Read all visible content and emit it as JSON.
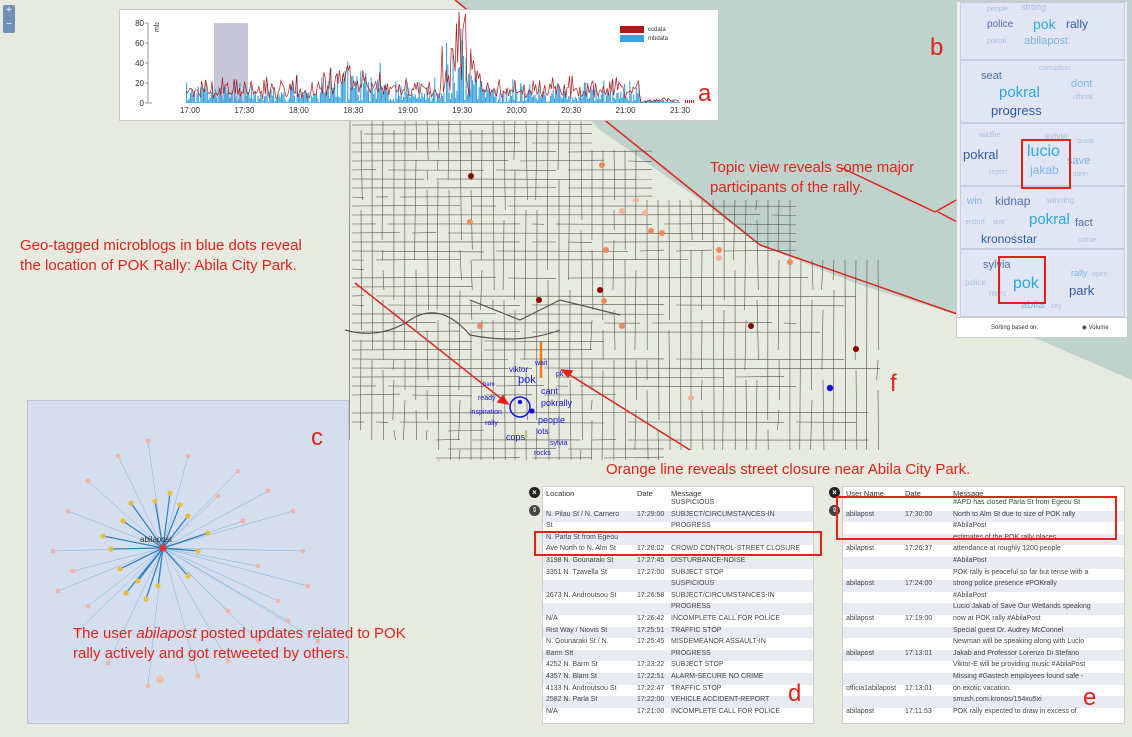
{
  "panel_labels": {
    "a": "a",
    "b": "b",
    "c": "c",
    "d": "d",
    "e": "e",
    "f": "f"
  },
  "zoom": {
    "in": "+",
    "out": "−"
  },
  "timeline": {
    "ylabel_left": "mb",
    "ylabel_right": "cc",
    "left_ticks": [
      "0",
      "20",
      "40",
      "60",
      "80"
    ],
    "right_ticks": [
      "0",
      "2",
      "4",
      "6",
      "8"
    ],
    "x_ticks": [
      "17:00",
      "17:30",
      "18:00",
      "18:30",
      "19:00",
      "19:30",
      "20:00",
      "20:30",
      "21:00",
      "21:30"
    ],
    "legend": [
      {
        "label": "ccdata",
        "color": "#b01818"
      },
      {
        "label": "mbdata",
        "color": "#3ba3dd"
      }
    ]
  },
  "topics": [
    {
      "words": [
        "people",
        "strong",
        "police",
        "pok",
        "rally",
        "pokral",
        "abilapost"
      ]
    },
    {
      "words": [
        "corruption",
        "seat",
        "dont",
        "pokral",
        "official",
        "progress"
      ]
    },
    {
      "words": [
        "wildfire",
        "sylvia",
        "quote",
        "pokral",
        "lucio",
        "save",
        "jakab",
        "report",
        "stein"
      ]
    },
    {
      "words": [
        "win",
        "kidnap",
        "winning",
        "pokral",
        "fact",
        "endort",
        "aint",
        "kronosstar",
        "crime"
      ]
    },
    {
      "words": [
        "sylvia",
        "rally",
        "open",
        "police",
        "pok",
        "park",
        "abila",
        "marc",
        "city"
      ]
    }
  ],
  "sorting": {
    "label": "Sorting based on:",
    "option": "Volume"
  },
  "map_words": [
    "viktor",
    "wait",
    "pok",
    "pk",
    "cant",
    "pokrally",
    "people",
    "lots",
    "cops",
    "rally",
    "sylvia",
    "rocks",
    "inspiration",
    "ready",
    "bam"
  ],
  "network": {
    "center_label": "abilapost"
  },
  "table_d": {
    "headers": [
      "Location",
      "Date",
      "Message"
    ],
    "rows": [
      {
        "loc": "",
        "date": "",
        "msg": "SUSPICIOUS"
      },
      {
        "loc": "N. Pilau St / N. Carnero",
        "date": "17:29:00",
        "msg": "SUBJECT/CIRCUMSTANCES-IN"
      },
      {
        "loc": "St",
        "date": "",
        "msg": "PROGRESS"
      },
      {
        "loc": "N. Parla St from Egeou",
        "date": "",
        "msg": ""
      },
      {
        "loc": "Ave North to N. Alm St",
        "date": "17:28:02",
        "msg": "CROWD CONTROL-STREET CLOSURE"
      },
      {
        "loc": "3198 N. Gounaraki St",
        "date": "17:27:45",
        "msg": "DISTURBANCE-NOISE"
      },
      {
        "loc": "3351 N. Tzavella St",
        "date": "17:27:00",
        "msg": "SUBJECT STOP"
      },
      {
        "loc": "",
        "date": "",
        "msg": "SUSPICIOUS"
      },
      {
        "loc": "2673 N. Androutsou St",
        "date": "17:26:58",
        "msg": "SUBJECT/CIRCUMSTANCES-IN"
      },
      {
        "loc": "",
        "date": "",
        "msg": "PROGRESS"
      },
      {
        "loc": "N/A",
        "date": "17:26:42",
        "msg": "INCOMPLETE CALL FOR POLICE"
      },
      {
        "loc": "Rist Way / Niovis St",
        "date": "17:25:51",
        "msg": "TRAFFIC STOP"
      },
      {
        "loc": "N. Gounaraki St / N.",
        "date": "17:25:45",
        "msg": "MISDEMEANOR ASSAULT-IN"
      },
      {
        "loc": "Barm Stt",
        "date": "",
        "msg": "PROGRESS"
      },
      {
        "loc": "4252 N. Barm St",
        "date": "17:23:22",
        "msg": "SUBJECT STOP"
      },
      {
        "loc": "4357 N. Blant St",
        "date": "17:22:51",
        "msg": "ALARM-SECURE NO CRIME"
      },
      {
        "loc": "4133 N. Androutsou St",
        "date": "17:22:47",
        "msg": "TRAFFIC STOP"
      },
      {
        "loc": "2582 N. Parla St",
        "date": "17:22:00",
        "msg": "VEHICLE ACCIDENT-REPORT"
      },
      {
        "loc": "N/A",
        "date": "17:21:00",
        "msg": "INCOMPLETE CALL FOR POLICE"
      }
    ]
  },
  "table_e": {
    "headers": [
      "User Name",
      "Date",
      "Message"
    ],
    "rows": [
      {
        "user": "",
        "date": "",
        "msg": "#APD has closed Parla St from Egeou St"
      },
      {
        "user": "abilapost",
        "date": "17:30:00",
        "msg": "North to Alm St due to size of POK rally"
      },
      {
        "user": "",
        "date": "",
        "msg": "#AbilaPost"
      },
      {
        "user": "",
        "date": "",
        "msg": "estimates of the POK rally places"
      },
      {
        "user": "abilapost",
        "date": "17:26:37",
        "msg": "attendance at roughly 1200 people"
      },
      {
        "user": "",
        "date": "",
        "msg": "#AbilaPost"
      },
      {
        "user": "",
        "date": "",
        "msg": "POK rally is peaceful so far but tense with a"
      },
      {
        "user": "abilapost",
        "date": "17:24:00",
        "msg": "strong police presence #POKrally"
      },
      {
        "user": "",
        "date": "",
        "msg": "#AbilaPost"
      },
      {
        "user": "",
        "date": "",
        "msg": "Lucio Jakab of Save Our Wetlands speaking"
      },
      {
        "user": "abilapost",
        "date": "17:19:00",
        "msg": "now at POK rally #AbilaPost"
      },
      {
        "user": "",
        "date": "",
        "msg": "Special guest Dr. Audrey McConnel"
      },
      {
        "user": "",
        "date": "",
        "msg": "Newman will be speaking along with Lucio"
      },
      {
        "user": "abilapost",
        "date": "17:13:01",
        "msg": "Jakab and Professor Lorenzo Di Stefano"
      },
      {
        "user": "",
        "date": "",
        "msg": "Viktor-E will be providing music #AbilaPost"
      },
      {
        "user": "",
        "date": "",
        "msg": "Missing #Gastech employees found safe -"
      },
      {
        "user": "officia1abilapost",
        "date": "17:13:01",
        "msg": "on exotic vacation."
      },
      {
        "user": "",
        "date": "",
        "msg": "smush.com.kronos/154xu5xi"
      },
      {
        "user": "abilapost",
        "date": "17:11:53",
        "msg": "POK rally expected to draw in excess of"
      }
    ]
  },
  "annotations": {
    "topic": [
      "Topic view reveals some major",
      "participants of the rally."
    ],
    "geo": [
      "Geo-tagged microblogs in blue dots reveal",
      "the location of POK Rally: Abila City Park."
    ],
    "orange": "Orange line reveals street closure near Abila City Park.",
    "user_pre": "The user ",
    "user_name": "abilapost",
    "user_post": " posted updates related to POK",
    "user_line2": "rally actively and got retweeted by others."
  },
  "colors": {
    "accent": "#e2231a",
    "cc": "#b01818",
    "mb": "#3ba3dd",
    "water": "#bfd3cc",
    "land": "#e7eadf"
  }
}
